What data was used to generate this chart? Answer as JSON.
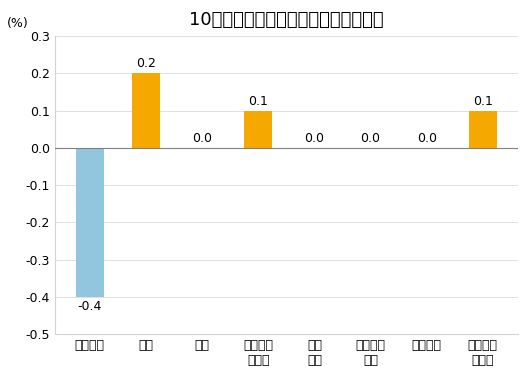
{
  "title": "10月份居民消费价格分类别环比涨跌幅",
  "ylabel": "(%)",
  "categories": [
    "食品烟酒",
    "衣着",
    "居住",
    "生活用品\n及服务",
    "交通\n通信",
    "教育文化\n娱乐",
    "医疗保健",
    "其他用品\n及服务"
  ],
  "values": [
    -0.4,
    0.2,
    0.0,
    0.1,
    0.0,
    0.0,
    0.0,
    0.1
  ],
  "bar_colors": [
    "#92C5DE",
    "#F5A800",
    "#F5A800",
    "#F5A800",
    "#F5A800",
    "#F5A800",
    "#F5A800",
    "#F5A800"
  ],
  "ylim": [
    -0.5,
    0.3
  ],
  "yticks": [
    -0.5,
    -0.4,
    -0.3,
    -0.2,
    -0.1,
    0.0,
    0.1,
    0.2,
    0.3
  ],
  "background_color": "#ffffff",
  "title_fontsize": 13,
  "label_fontsize": 9,
  "tick_fontsize": 9,
  "value_fontsize": 9
}
